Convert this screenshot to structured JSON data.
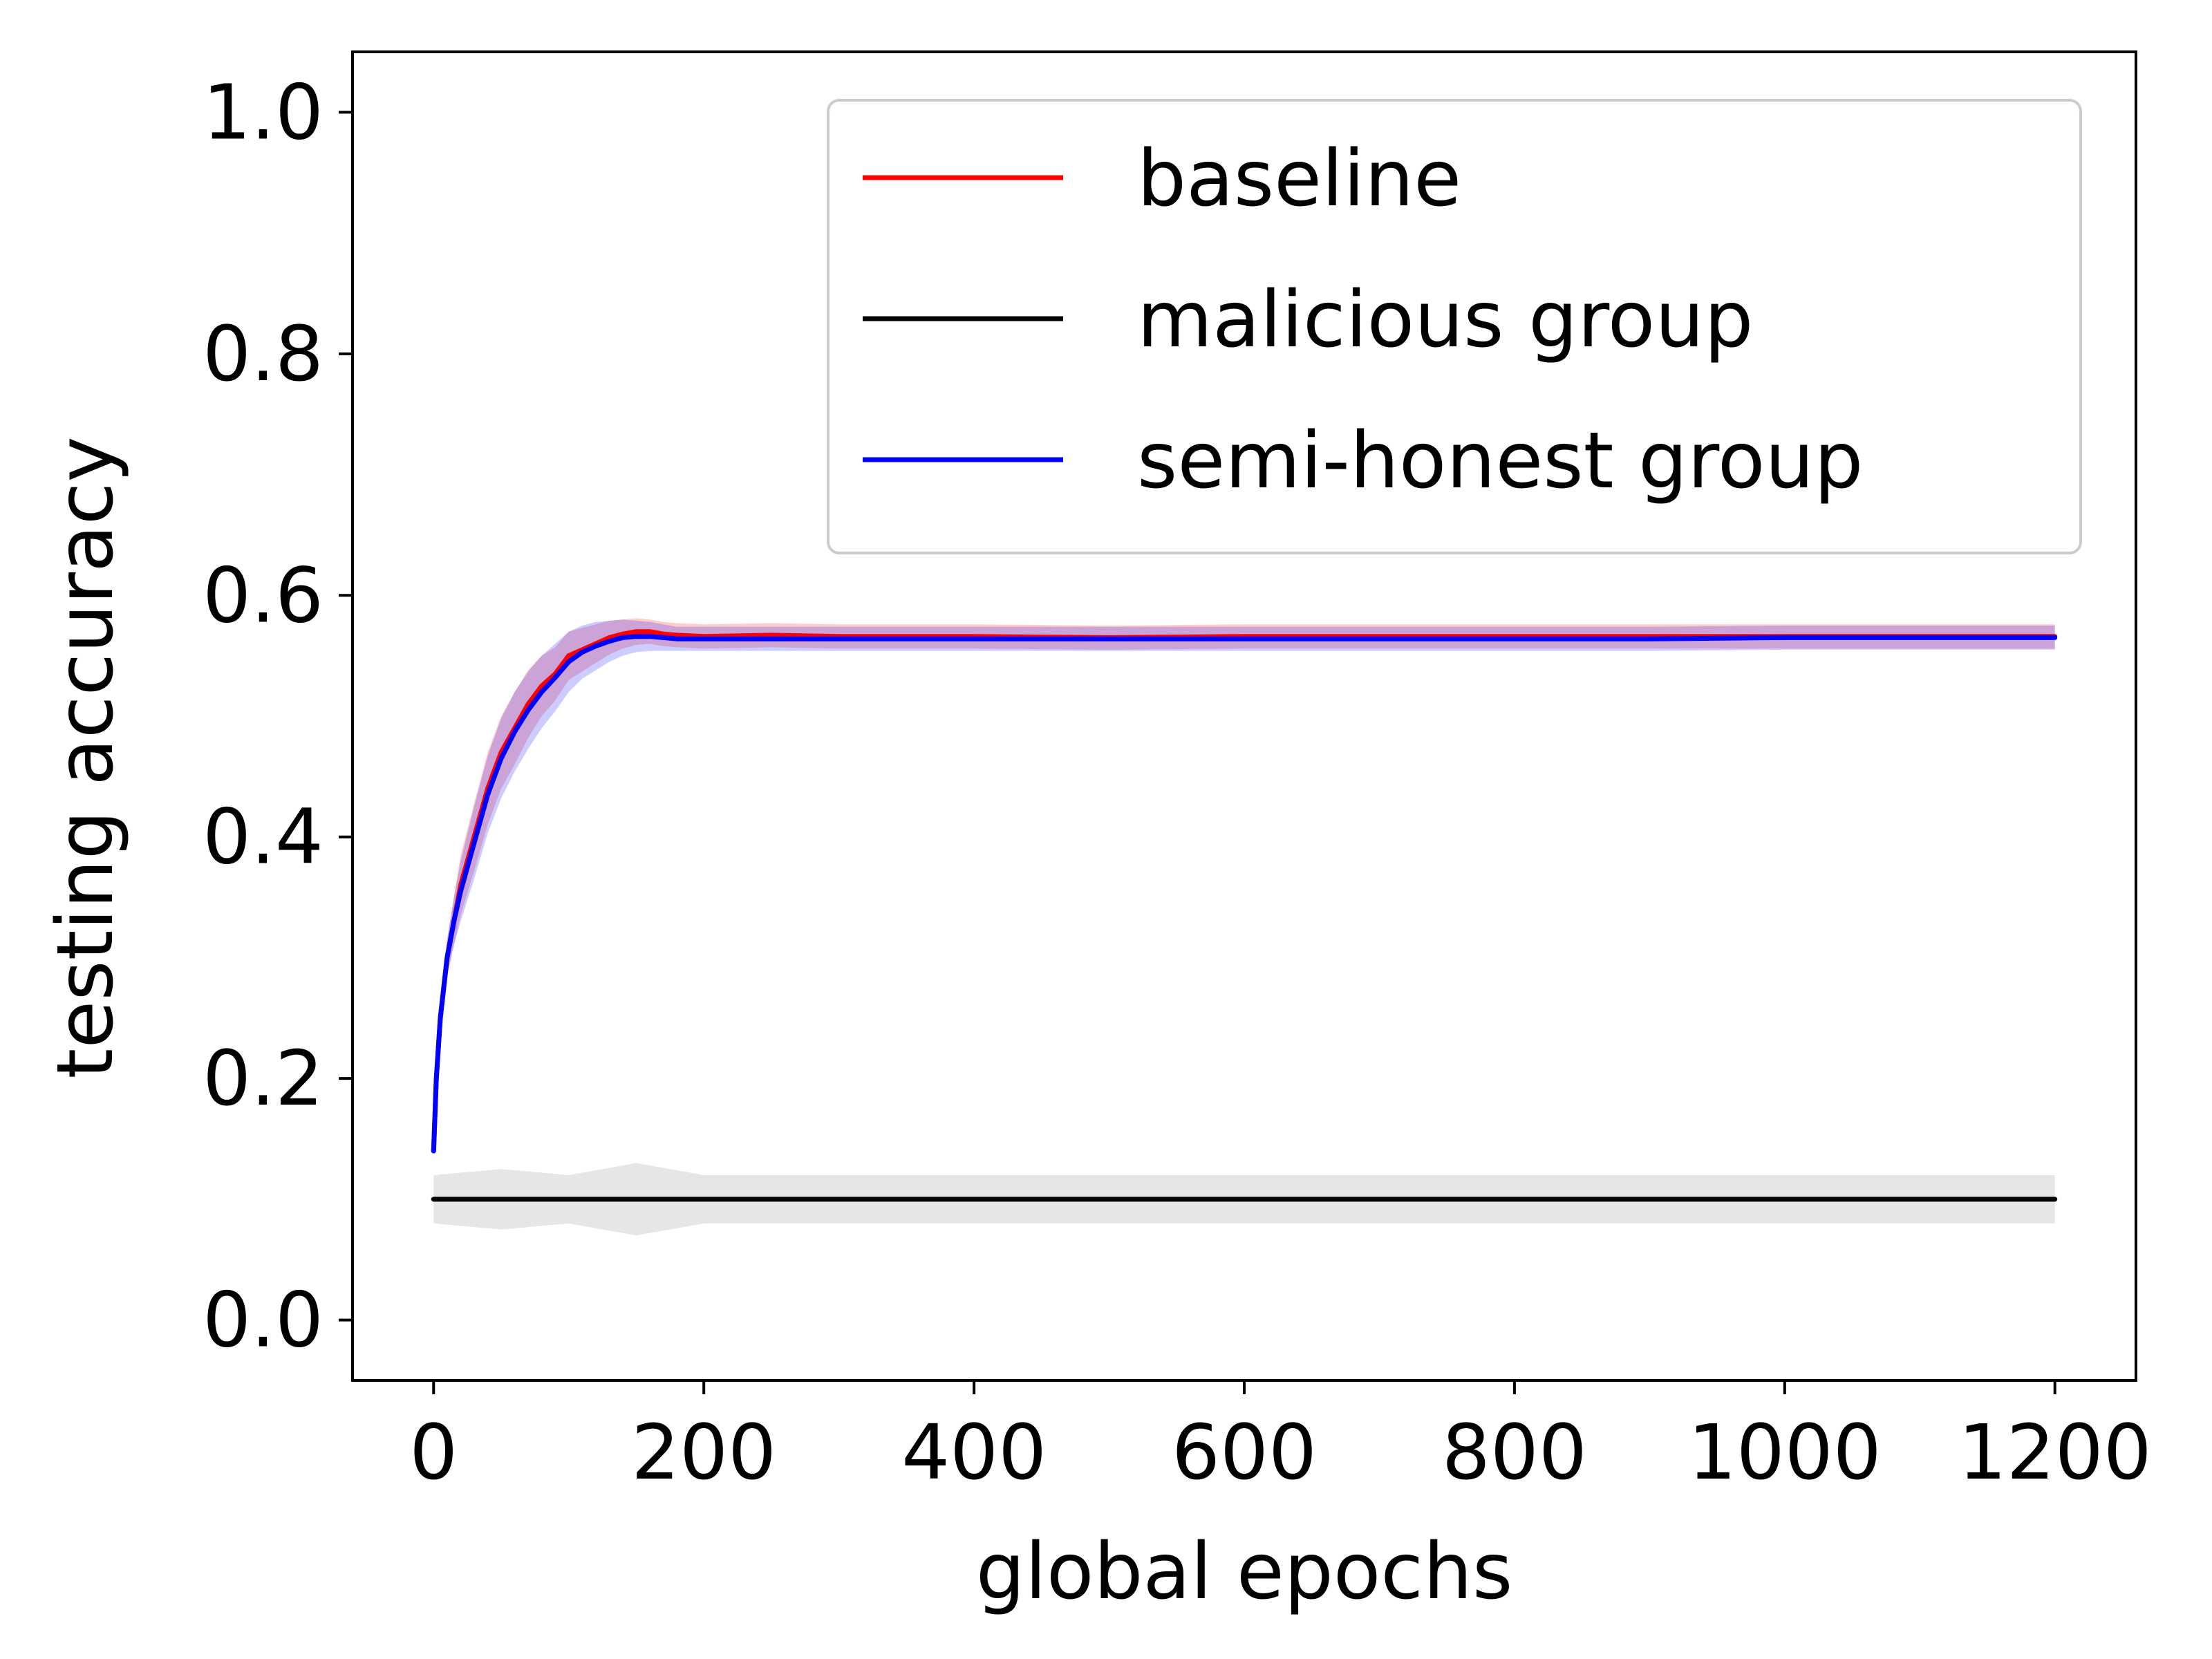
{
  "chart_data": {
    "type": "line",
    "title": "",
    "xlabel": "global epochs",
    "ylabel": "testing accuracy",
    "xlim": [
      -60,
      1260
    ],
    "ylim": [
      -0.05,
      1.05
    ],
    "xticks": [
      0,
      200,
      400,
      600,
      800,
      1000,
      1200
    ],
    "xtick_labels": [
      "0",
      "200",
      "400",
      "600",
      "800",
      "1000",
      "1200"
    ],
    "yticks": [
      0.0,
      0.2,
      0.4,
      0.6,
      0.8,
      1.0
    ],
    "ytick_labels": [
      "0.0",
      "0.2",
      "0.4",
      "0.6",
      "0.8",
      "1.0"
    ],
    "grid": false,
    "legend_position": "top-right",
    "series": [
      {
        "name": "baseline",
        "color": "#ff0000",
        "band_color": "#ff0000",
        "x": [
          0,
          2,
          5,
          10,
          15,
          20,
          30,
          40,
          50,
          60,
          70,
          80,
          90,
          100,
          110,
          120,
          130,
          140,
          150,
          160,
          170,
          180,
          200,
          250,
          300,
          400,
          500,
          600,
          700,
          800,
          900,
          1000,
          1100,
          1200
        ],
        "y": [
          0.14,
          0.2,
          0.25,
          0.3,
          0.33,
          0.36,
          0.4,
          0.44,
          0.47,
          0.49,
          0.51,
          0.525,
          0.535,
          0.55,
          0.555,
          0.56,
          0.565,
          0.568,
          0.57,
          0.57,
          0.568,
          0.567,
          0.566,
          0.567,
          0.566,
          0.566,
          0.565,
          0.566,
          0.566,
          0.566,
          0.566,
          0.566,
          0.566,
          0.566
        ],
        "band_halfwidth": [
          0.0,
          0.005,
          0.01,
          0.015,
          0.02,
          0.025,
          0.028,
          0.03,
          0.03,
          0.03,
          0.028,
          0.025,
          0.022,
          0.02,
          0.018,
          0.016,
          0.014,
          0.012,
          0.011,
          0.01,
          0.01,
          0.01,
          0.01,
          0.01,
          0.01,
          0.01,
          0.01,
          0.01,
          0.01,
          0.01,
          0.01,
          0.01,
          0.01,
          0.01
        ]
      },
      {
        "name": "malicious group",
        "color": "#000000",
        "band_color": "#808080",
        "x": [
          0,
          50,
          100,
          150,
          200,
          300,
          400,
          500,
          600,
          700,
          800,
          900,
          1000,
          1100,
          1200
        ],
        "y": [
          0.1,
          0.1,
          0.1,
          0.1,
          0.1,
          0.1,
          0.1,
          0.1,
          0.1,
          0.1,
          0.1,
          0.1,
          0.1,
          0.1,
          0.1
        ],
        "band_halfwidth": [
          0.02,
          0.025,
          0.02,
          0.03,
          0.02,
          0.02,
          0.02,
          0.02,
          0.02,
          0.02,
          0.02,
          0.02,
          0.02,
          0.02,
          0.02
        ]
      },
      {
        "name": "semi-honest group",
        "color": "#0000ff",
        "band_color": "#0000ff",
        "x": [
          0,
          2,
          5,
          10,
          15,
          20,
          30,
          40,
          50,
          60,
          70,
          80,
          90,
          100,
          110,
          120,
          130,
          140,
          150,
          160,
          170,
          180,
          200,
          250,
          300,
          400,
          500,
          600,
          700,
          800,
          900,
          1000,
          1100,
          1200
        ],
        "y": [
          0.14,
          0.2,
          0.25,
          0.3,
          0.33,
          0.355,
          0.395,
          0.435,
          0.465,
          0.487,
          0.505,
          0.52,
          0.532,
          0.545,
          0.553,
          0.558,
          0.562,
          0.565,
          0.566,
          0.566,
          0.565,
          0.564,
          0.564,
          0.564,
          0.564,
          0.564,
          0.564,
          0.564,
          0.564,
          0.564,
          0.564,
          0.565,
          0.565,
          0.565
        ],
        "band_halfwidth": [
          0.0,
          0.005,
          0.01,
          0.015,
          0.02,
          0.025,
          0.03,
          0.032,
          0.033,
          0.033,
          0.032,
          0.03,
          0.028,
          0.025,
          0.022,
          0.02,
          0.017,
          0.015,
          0.013,
          0.012,
          0.011,
          0.01,
          0.01,
          0.01,
          0.01,
          0.01,
          0.01,
          0.01,
          0.01,
          0.01,
          0.01,
          0.01,
          0.01,
          0.01
        ]
      }
    ]
  }
}
